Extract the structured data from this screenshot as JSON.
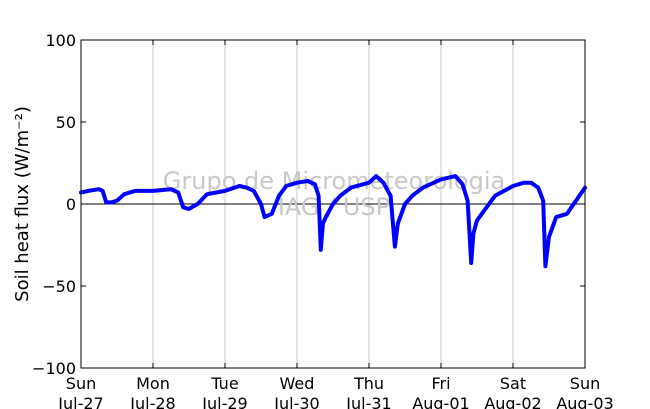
{
  "chart_data": {
    "type": "line",
    "ylabel": "Soil heat flux (W/m⁻²)",
    "ylim": [
      -100,
      100
    ],
    "yticks": [
      -100,
      -50,
      0,
      50,
      100
    ],
    "ytick_labels": [
      "−100",
      "−50",
      "0",
      "50",
      "100"
    ],
    "xlim": [
      "2014-07-27",
      "2014-08-03"
    ],
    "xticks": [
      {
        "day": "Sun",
        "date": "Jul-27",
        "x": 0
      },
      {
        "day": "Mon",
        "date": "Jul-28",
        "x": 1
      },
      {
        "day": "Tue",
        "date": "Jul-29",
        "x": 2
      },
      {
        "day": "Wed",
        "date": "Jul-30",
        "x": 3
      },
      {
        "day": "Thu",
        "date": "Jul-31",
        "x": 4
      },
      {
        "day": "Fri",
        "date": "Aug-01",
        "x": 5
      },
      {
        "day": "Sat",
        "date": "Aug-02",
        "x": 6
      },
      {
        "day": "Sun",
        "date": "Aug-03",
        "x": 7
      }
    ],
    "grid": "vertical",
    "zero_line": true,
    "watermark": [
      "Grupo de Micrometeorologia",
      "IAG / USP"
    ],
    "series": [
      {
        "color": "#0000ff",
        "x": [
          0,
          0.1,
          0.25,
          0.3,
          0.35,
          0.42,
          0.5,
          0.6,
          0.75,
          1.0,
          1.25,
          1.35,
          1.42,
          1.5,
          1.62,
          1.75,
          2.0,
          2.2,
          2.3,
          2.4,
          2.5,
          2.55,
          2.65,
          2.75,
          2.85,
          3.0,
          3.15,
          3.25,
          3.3,
          3.33,
          3.36,
          3.4,
          3.5,
          3.6,
          3.75,
          4.0,
          4.1,
          4.2,
          4.3,
          4.36,
          4.4,
          4.45,
          4.5,
          4.6,
          4.75,
          5.0,
          5.2,
          5.3,
          5.37,
          5.42,
          5.45,
          5.5,
          5.6,
          5.75,
          6.0,
          6.15,
          6.25,
          6.35,
          6.42,
          6.45,
          6.5,
          6.6,
          6.75,
          7.0
        ],
        "y": [
          7,
          8,
          9,
          8,
          1,
          1,
          2,
          6,
          8,
          8,
          9,
          7,
          -2,
          -3,
          0,
          6,
          8,
          11,
          10,
          8,
          0,
          -8,
          -6,
          5,
          11,
          13,
          14,
          12,
          5,
          -28,
          -12,
          -8,
          0,
          5,
          10,
          13,
          17,
          13,
          5,
          -26,
          -12,
          -6,
          0,
          5,
          10,
          15,
          17,
          12,
          2,
          -36,
          -18,
          -10,
          -4,
          5,
          11,
          13,
          13,
          10,
          2,
          -38,
          -20,
          -8,
          -6,
          10
        ]
      }
    ]
  }
}
